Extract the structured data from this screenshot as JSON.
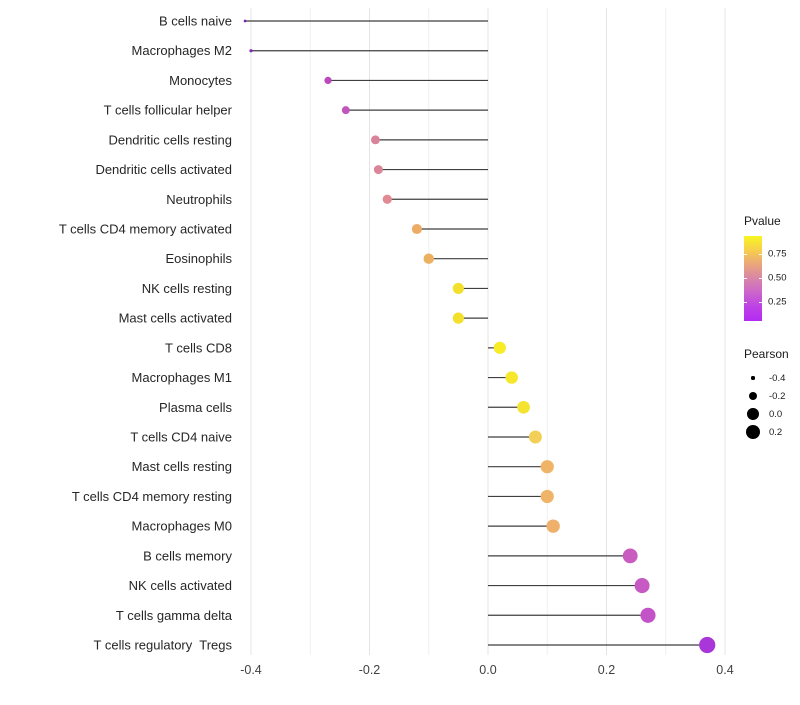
{
  "chart_data": {
    "type": "lollipop",
    "title": "",
    "xlabel": "",
    "ylabel": "",
    "x_tick_labels": [
      "-0.4",
      "-0.2",
      "0.0",
      "0.2",
      "0.4"
    ],
    "x_tick_values": [
      -0.4,
      -0.2,
      0.0,
      0.2,
      0.4
    ],
    "x_grid_minor": [
      -0.3,
      -0.1,
      0.1,
      0.3
    ],
    "xlim": [
      -0.45,
      0.43
    ],
    "grid": "vertical-only",
    "rows": [
      {
        "label": "B cells naive",
        "pearson": -0.41,
        "color": "#7e22b0"
      },
      {
        "label": "Macrophages M2",
        "pearson": -0.4,
        "color": "#8a2bb7"
      },
      {
        "label": "Monocytes",
        "pearson": -0.27,
        "color": "#bc48bd"
      },
      {
        "label": "T cells follicular helper",
        "pearson": -0.24,
        "color": "#c055bb"
      },
      {
        "label": "Dendritic cells resting",
        "pearson": -0.19,
        "color": "#d9849a"
      },
      {
        "label": "Dendritic cells activated",
        "pearson": -0.185,
        "color": "#da8598"
      },
      {
        "label": "Neutrophils",
        "pearson": -0.17,
        "color": "#e18a92"
      },
      {
        "label": "T cells CD4 memory activated",
        "pearson": -0.12,
        "color": "#ecac66"
      },
      {
        "label": "Eosinophils",
        "pearson": -0.1,
        "color": "#ecb061"
      },
      {
        "label": "NK cells resting",
        "pearson": -0.05,
        "color": "#f3e02c"
      },
      {
        "label": "Mast cells activated",
        "pearson": -0.05,
        "color": "#f3e02c"
      },
      {
        "label": "T cells CD8",
        "pearson": 0.02,
        "color": "#f7ec25"
      },
      {
        "label": "Macrophages M1",
        "pearson": 0.04,
        "color": "#f6e72a"
      },
      {
        "label": "Plasma cells",
        "pearson": 0.06,
        "color": "#f5e331"
      },
      {
        "label": "T cells CD4 naive",
        "pearson": 0.08,
        "color": "#f3cf58"
      },
      {
        "label": "Mast cells resting",
        "pearson": 0.1,
        "color": "#efb468"
      },
      {
        "label": "T cells CD4 memory resting",
        "pearson": 0.1,
        "color": "#efb468"
      },
      {
        "label": "Macrophages M0",
        "pearson": 0.11,
        "color": "#eeb06a"
      },
      {
        "label": "B cells memory",
        "pearson": 0.24,
        "color": "#c95cbf"
      },
      {
        "label": "NK cells activated",
        "pearson": 0.26,
        "color": "#c65ac2"
      },
      {
        "label": "T cells gamma delta",
        "pearson": 0.27,
        "color": "#c453c8"
      },
      {
        "label": "T cells regulatory  Tregs",
        "pearson": 0.37,
        "color": "#a836d8"
      }
    ],
    "legend": {
      "color": {
        "title": "Pvalue",
        "tick_labels": [
          "0.75",
          "0.50",
          "0.25"
        ],
        "tick_values": [
          0.75,
          0.5,
          0.25
        ],
        "bar_range_top": 0.93,
        "bar_range_bottom": 0.06,
        "gradient_top_to_bottom": [
          "#f7f622",
          "#f7cf4c",
          "#e9a57c",
          "#d885a8",
          "#cb64cc",
          "#bd41e6",
          "#b32bf2"
        ]
      },
      "size": {
        "title": "Pearson",
        "entries": [
          {
            "label": "-0.4",
            "value": -0.4
          },
          {
            "label": "-0.2",
            "value": -0.2
          },
          {
            "label": "0.0",
            "value": 0.0
          },
          {
            "label": "0.2",
            "value": 0.2
          }
        ]
      }
    }
  },
  "colors": {
    "background": "#ffffff",
    "stem": "#3f3f3f",
    "grid_major": "#e4e4e4",
    "grid_minor": "#f0f0f0",
    "axis_text": "#404040",
    "y_label_text": "#262626"
  }
}
